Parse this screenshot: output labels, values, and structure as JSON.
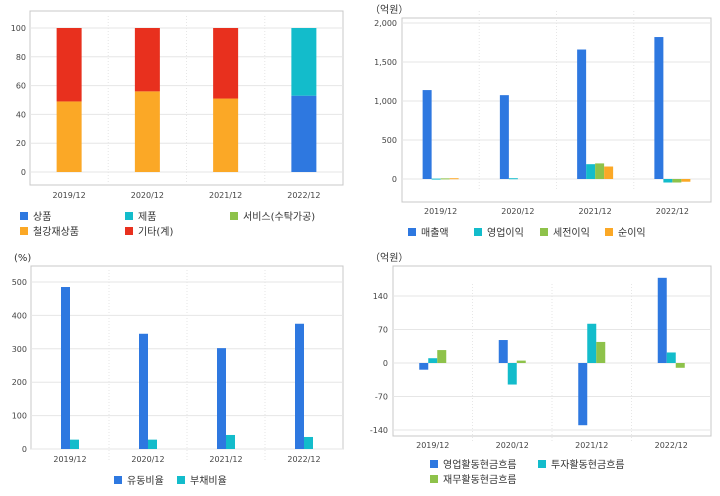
{
  "colors": {
    "blue": "#2e78e0",
    "cyan": "#13bccb",
    "green": "#8ec24a",
    "orange": "#fba826",
    "red": "#e8301e",
    "grid": "#e6e6e6",
    "frame": "#c8c8c8"
  },
  "chart_data": [
    {
      "type": "bar",
      "stacked": true,
      "categories": [
        "2019/12",
        "2020/12",
        "2021/12",
        "2022/12"
      ],
      "ylim": [
        0,
        100
      ],
      "yticks": [
        "0",
        "20",
        "40",
        "60",
        "80",
        "100"
      ],
      "series": [
        {
          "name": "상품",
          "color": "#2e78e0",
          "values": [
            0,
            0,
            0,
            53
          ]
        },
        {
          "name": "제품",
          "color": "#13bccb",
          "values": [
            0,
            0,
            0,
            47
          ]
        },
        {
          "name": "서비스(수탁가공)",
          "color": "#8ec24a",
          "values": [
            0,
            0,
            0,
            0
          ]
        },
        {
          "name": "철강재상품",
          "color": "#fba826",
          "values": [
            49,
            56,
            51,
            0
          ]
        },
        {
          "name": "기타(계)",
          "color": "#e8301e",
          "values": [
            51,
            44,
            49,
            0
          ]
        }
      ],
      "grid": true
    },
    {
      "type": "bar",
      "unit_label": "（억원）",
      "categories": [
        "2019/12",
        "2020/12",
        "2021/12",
        "2022/12"
      ],
      "ylim": [
        -150,
        2000
      ],
      "yticks": [
        "0",
        "500",
        "1,000",
        "1,500",
        "2,000"
      ],
      "series": [
        {
          "name": "매출액",
          "color": "#2e78e0",
          "values": [
            1140,
            1075,
            1660,
            1820
          ]
        },
        {
          "name": "영업이익",
          "color": "#13bccb",
          "values": [
            5,
            10,
            190,
            -45
          ]
        },
        {
          "name": "세전이익",
          "color": "#8ec24a",
          "values": [
            8,
            0,
            200,
            -45
          ]
        },
        {
          "name": "순이익",
          "color": "#fba826",
          "values": [
            10,
            0,
            160,
            -35
          ]
        }
      ],
      "grid": true
    },
    {
      "type": "bar",
      "unit_label": "(%)",
      "categories": [
        "2019/12",
        "2020/12",
        "2021/12",
        "2022/12"
      ],
      "ylim": [
        0,
        500
      ],
      "yticks": [
        "0",
        "100",
        "200",
        "300",
        "400",
        "500"
      ],
      "series": [
        {
          "name": "유동비율",
          "color": "#2e78e0",
          "values": [
            485,
            345,
            302,
            375
          ]
        },
        {
          "name": "부채비율",
          "color": "#13bccb",
          "values": [
            28,
            28,
            42,
            36
          ]
        }
      ],
      "grid": true
    },
    {
      "type": "bar",
      "unit_label": "（억원）",
      "categories": [
        "2019/12",
        "2020/12",
        "2021/12",
        "2022/12"
      ],
      "ylim": [
        -140,
        175
      ],
      "yticks": [
        "-140",
        "-70",
        "0",
        "70",
        "140"
      ],
      "series": [
        {
          "name": "영업활동현금흐름",
          "color": "#2e78e0",
          "values": [
            -14,
            48,
            -130,
            178
          ]
        },
        {
          "name": "투자활동현금흐름",
          "color": "#13bccb",
          "values": [
            10,
            -45,
            82,
            22
          ]
        },
        {
          "name": "재무활동현금흐름",
          "color": "#8ec24a",
          "values": [
            27,
            5,
            44,
            -10
          ]
        }
      ],
      "grid": true
    }
  ]
}
